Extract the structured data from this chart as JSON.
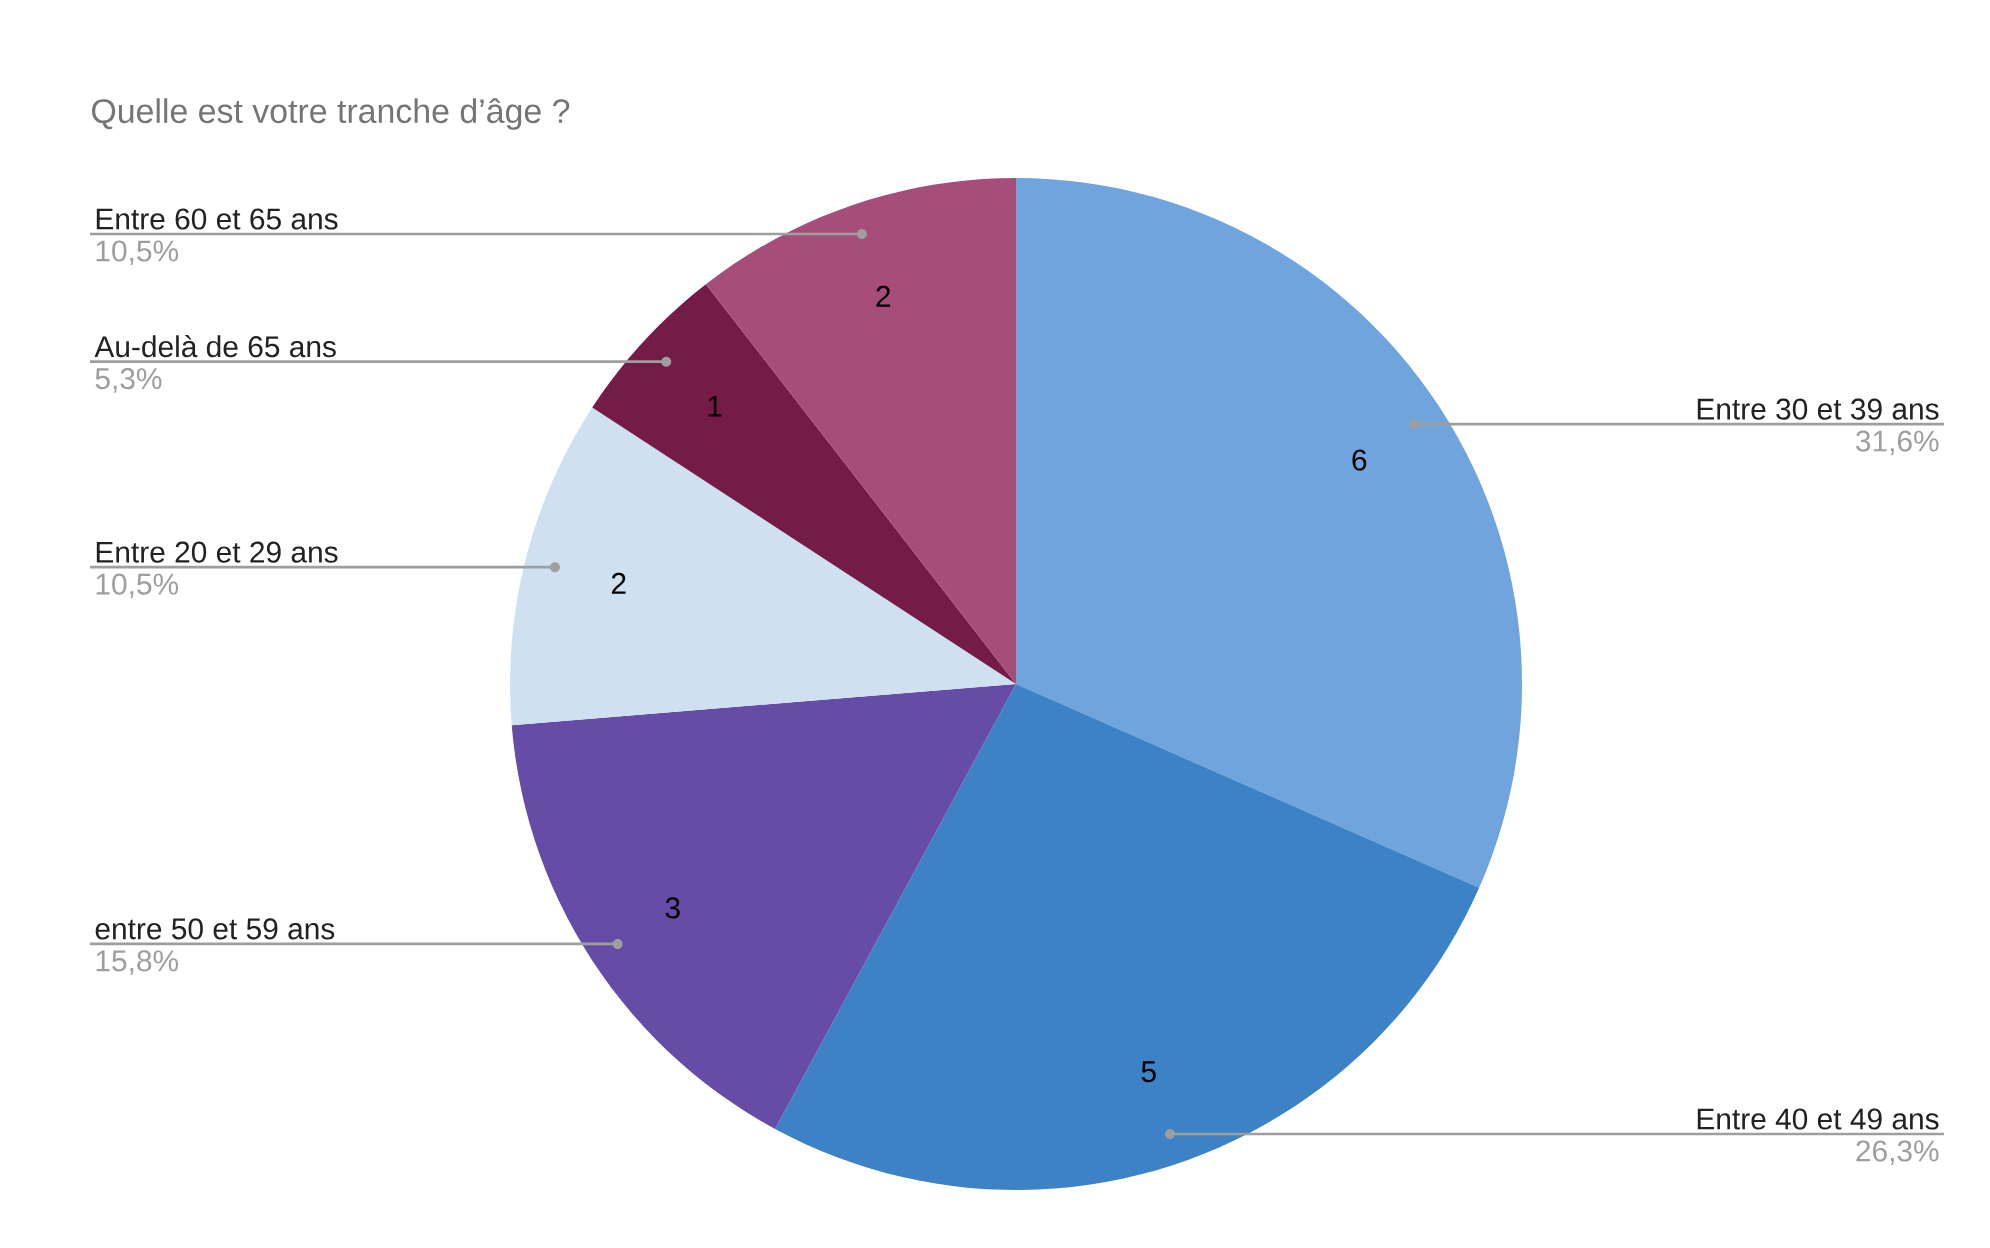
{
  "chart_data": {
    "type": "pie",
    "title": "Quelle est votre tranche d’âge ?",
    "categories": [
      "Entre 30 et 39 ans",
      "Entre 40 et 49 ans",
      "entre 50 et 59 ans",
      "Entre 20 et 29 ans",
      "Au-delà de 65 ans",
      "Entre 60 et 65 ans"
    ],
    "values": [
      31.6,
      26.3,
      15.8,
      10.5,
      5.3,
      10.5
    ],
    "colors": [
      "#6fa4dc",
      "#3d82c4",
      "#664ca6",
      "#cfe1f1",
      "#741b47",
      "#a64d79"
    ],
    "value_labels": [
      "31,6%",
      "26,3%",
      "15,8%",
      "10,5%",
      "5,3%",
      "10,5%"
    ],
    "annotations": [
      "6",
      "5",
      "3",
      "2",
      "1",
      "2"
    ]
  }
}
